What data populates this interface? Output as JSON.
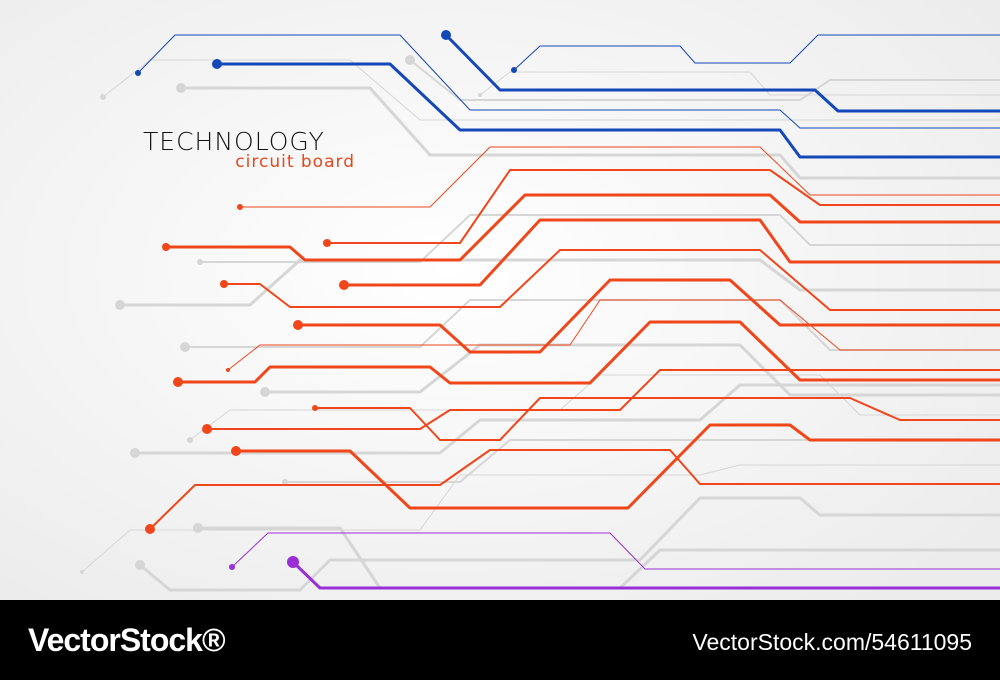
{
  "header": {
    "title": "TECHNOLOGY",
    "subtitle": "circuit board"
  },
  "footer": {
    "brand": "VectorStock®",
    "link": "VectorStock.com/54611095"
  }
}
